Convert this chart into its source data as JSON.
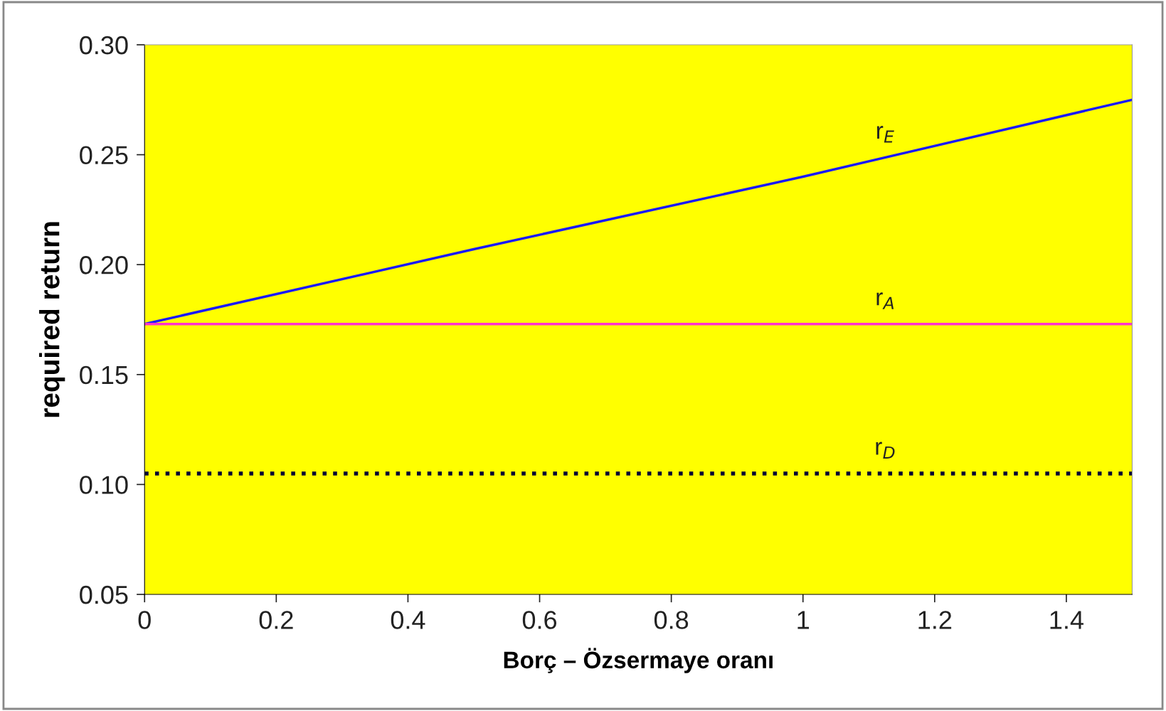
{
  "chart_data": {
    "type": "line",
    "xlabel": "Borç – Özsermaye oranı",
    "ylabel": "required return",
    "xlim": [
      0,
      1.5
    ],
    "xticks": [
      0,
      0.2,
      0.4,
      0.6,
      0.8,
      1,
      1.2,
      1.4
    ],
    "ylim": [
      0.05,
      0.3
    ],
    "yticks": [
      {
        "value": 0.05,
        "label": "0.05"
      },
      {
        "value": 0.1,
        "label": "0.10"
      },
      {
        "value": 0.15,
        "label": "0.15"
      },
      {
        "value": 0.2,
        "label": "0.20"
      },
      {
        "value": 0.25,
        "label": "0.25"
      },
      {
        "value": 0.3,
        "label": "0.30"
      }
    ],
    "grid": false,
    "marker": "none",
    "series": [
      {
        "name": "r$_{E}$",
        "color": "#1a1aff",
        "x": [
          0,
          0.5,
          1,
          1.5
        ],
        "values": [
          0.173,
          0.207,
          0.24,
          0.275
        ],
        "line_style": "solid"
      },
      {
        "name": "r$_{A}$",
        "color": "#ff33cc",
        "x": [
          0,
          1.5
        ],
        "values": [
          0.173,
          0.173
        ],
        "line_style": "solid"
      },
      {
        "name": "r$_{D}$",
        "color": "#000033",
        "x": [
          0,
          1.5
        ],
        "values": [
          0.105,
          0.105
        ],
        "line_style": "dotted"
      }
    ]
  }
}
